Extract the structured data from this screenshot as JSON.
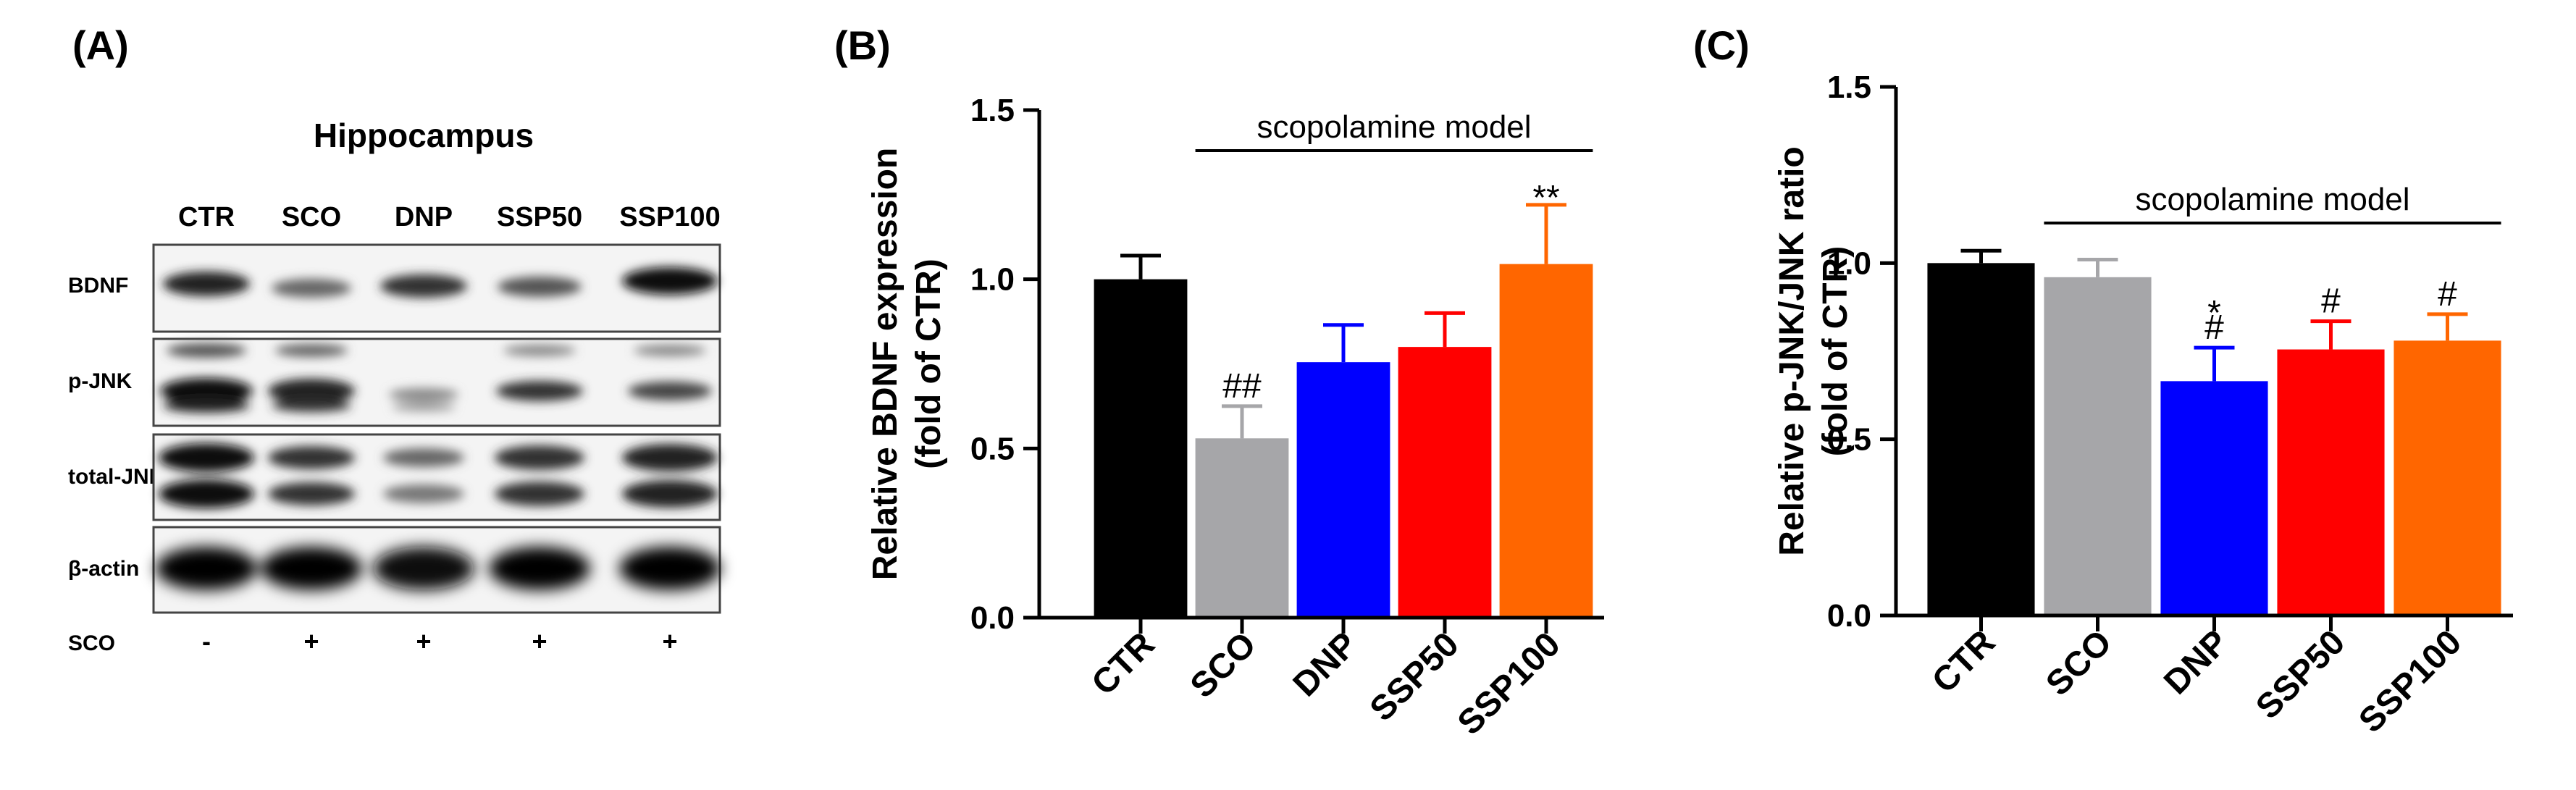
{
  "panels": {
    "A": {
      "label": "(A)",
      "title": "Hippocampus",
      "lane_labels": [
        "CTR",
        "SCO",
        "DNP",
        "SSP50",
        "SSP100"
      ],
      "row_labels": [
        "BDNF",
        "p-JNK",
        "total-JNK",
        "β-actin"
      ],
      "sco_row_label": "SCO",
      "sco_signs": [
        "-",
        "+",
        "+",
        "+",
        "+"
      ]
    },
    "B": {
      "label": "(B)"
    },
    "C": {
      "label": "(C)"
    }
  },
  "colors": {
    "CTR": "#000000",
    "SCO": "#a6a6a9",
    "DNP": "#0000ff",
    "SSP50": "#ff0000",
    "SSP100": "#ff6600"
  },
  "chart_data": [
    {
      "type": "bar",
      "panel": "B",
      "categories": [
        "CTR",
        "SCO",
        "DNP",
        "SSP50",
        "SSP100"
      ],
      "values": [
        1.0,
        0.53,
        0.755,
        0.8,
        1.045
      ],
      "errors": [
        0.07,
        0.095,
        0.11,
        0.1,
        0.175
      ],
      "ylabel": [
        "Relative BDNF expression",
        "(fold of CTR)"
      ],
      "ylim": [
        0,
        1.5
      ],
      "yticks": [
        "0.0",
        "0.5",
        "1.0",
        "1.5"
      ],
      "bracket_label": "scopolamine model",
      "annotations": [
        "",
        "##",
        "",
        "",
        "**"
      ]
    },
    {
      "type": "bar",
      "panel": "C",
      "categories": [
        "CTR",
        "SCO",
        "DNP",
        "SSP50",
        "SSP100"
      ],
      "values": [
        1.0,
        0.96,
        0.665,
        0.755,
        0.78
      ],
      "errors": [
        0.035,
        0.05,
        0.095,
        0.08,
        0.075
      ],
      "ylabel": [
        "Relative p-JNK/JNK ratio",
        "(fold of CTR)"
      ],
      "ylim": [
        0,
        1.5
      ],
      "yticks": [
        "0.0",
        "0.5",
        "1.0",
        "1.5"
      ],
      "bracket_label": "scopolamine model",
      "annotations": [
        "",
        "",
        "*\n#",
        "#",
        "#"
      ]
    }
  ]
}
